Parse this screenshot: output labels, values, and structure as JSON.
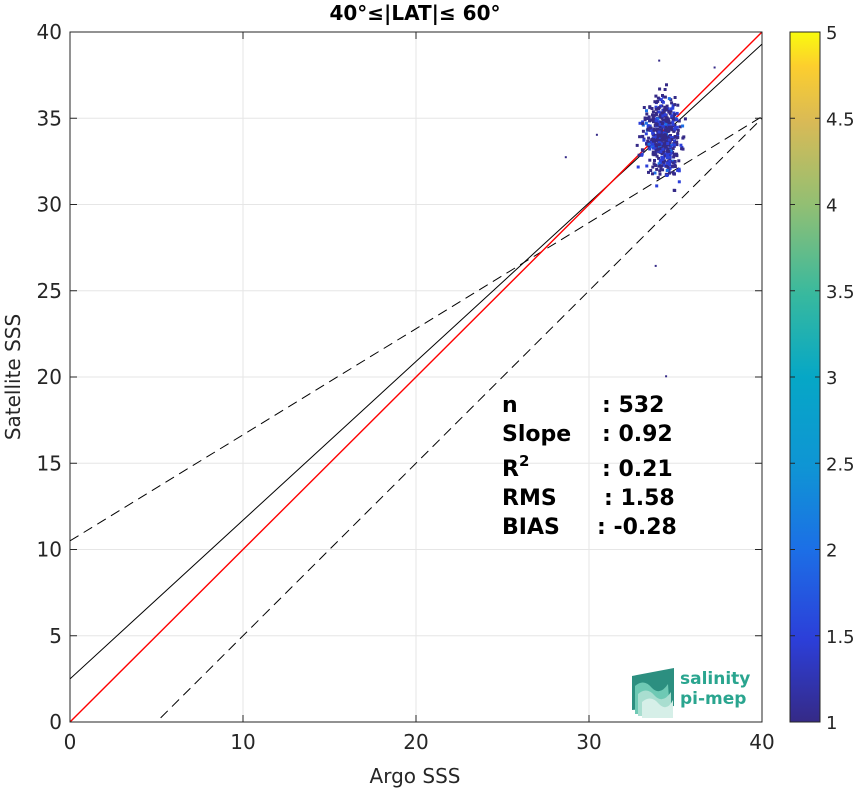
{
  "chart_data": {
    "type": "heatmap",
    "title": "40°≤|LAT|≤ 60°",
    "xlabel": "Argo SSS",
    "ylabel": "Satellite SSS",
    "xlim": [
      0,
      40
    ],
    "ylim": [
      0,
      40
    ],
    "xticks": [
      "0",
      "10",
      "20",
      "30",
      "40"
    ],
    "yticks": [
      "0",
      "5",
      "10",
      "15",
      "20",
      "25",
      "30",
      "35",
      "40"
    ],
    "grid": true,
    "colorbar": {
      "range": [
        1,
        5
      ],
      "ticks": [
        "1",
        "1.5",
        "2",
        "2.5",
        "3",
        "3.5",
        "4",
        "4.5",
        "5"
      ],
      "colormap": "parula"
    },
    "lines": [
      {
        "name": "identity",
        "color": "#ff0000",
        "slope": 1,
        "intercept": 0,
        "style": "solid"
      },
      {
        "name": "regression",
        "color": "#000000",
        "slope": 0.92,
        "intercept": 2.5,
        "style": "solid"
      },
      {
        "name": "upper-bound",
        "color": "#000000",
        "slope": 0.615,
        "intercept": 10.5,
        "style": "dashed"
      },
      {
        "name": "lower-bound",
        "color": "#000000",
        "slope": 1.0,
        "intercept": -5,
        "style": "dashed"
      }
    ],
    "stats": [
      {
        "label": "n",
        "value": ": 532"
      },
      {
        "label": "Slope",
        "value": ": 0.92"
      },
      {
        "label": "R",
        "sup": "2",
        "value": ": 0.21"
      },
      {
        "label": "RMS",
        "value": ": 1.58"
      },
      {
        "label": "BIAS",
        "value": ": -0.28"
      }
    ],
    "logo": {
      "line1": "salinity",
      "line2": "pi-mep"
    }
  }
}
